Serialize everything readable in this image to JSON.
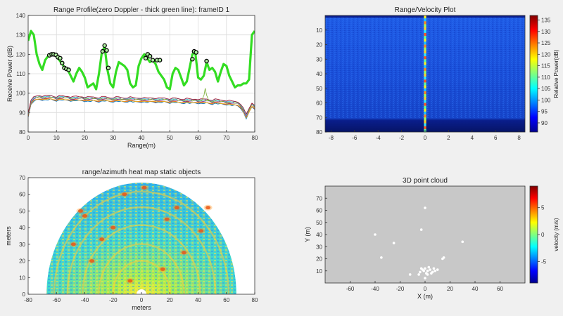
{
  "figure": {
    "background": "#f0f0f0"
  },
  "chart_data": [
    {
      "id": "range-profile",
      "type": "line",
      "title": "Range Profile(zero Doppler - thick green line): frameID 1",
      "xlabel": "Range(m)",
      "ylabel": "Receive Power (dB)",
      "xlim": [
        0,
        80
      ],
      "ylim": [
        80,
        140
      ],
      "xticks": [
        0,
        10,
        20,
        30,
        40,
        50,
        60,
        70,
        80
      ],
      "yticks": [
        80,
        90,
        100,
        110,
        120,
        130,
        140
      ],
      "grid": true,
      "series": [
        {
          "color": "#33dd22",
          "x": [
            0,
            1,
            2,
            3,
            4,
            5,
            6,
            7,
            8,
            9,
            10,
            11,
            12,
            13,
            14,
            15,
            16,
            17,
            18,
            19,
            20,
            21,
            22,
            23,
            24,
            25,
            26,
            27,
            28,
            29,
            30,
            31,
            32,
            33,
            34,
            35,
            36,
            37,
            38,
            39,
            40,
            41,
            42,
            43,
            44,
            45,
            46,
            47,
            48,
            49,
            50,
            51,
            52,
            53,
            54,
            55,
            56,
            57,
            58,
            59,
            60,
            61,
            62,
            63,
            64,
            65,
            66,
            67,
            68,
            69,
            70,
            71,
            72,
            73,
            74,
            75,
            76,
            77,
            78,
            79,
            80
          ],
          "values": [
            127,
            132,
            130,
            120,
            115,
            112,
            117,
            119,
            120,
            120,
            119,
            117,
            115,
            113,
            112,
            109,
            106,
            110,
            113,
            111,
            108,
            103,
            104,
            105,
            102,
            110,
            121,
            124,
            112,
            105,
            103,
            111,
            116,
            115,
            114,
            112,
            105,
            103,
            104,
            114,
            118,
            120,
            118,
            116,
            117,
            115,
            111,
            109,
            107,
            103,
            102,
            110,
            113,
            112,
            108,
            104,
            106,
            113,
            120,
            121,
            108,
            107,
            109,
            116,
            112,
            113,
            111,
            106,
            111,
            115,
            114,
            109,
            106,
            103,
            104,
            104,
            105,
            105,
            107,
            130,
            132
          ]
        }
      ],
      "background_series": {
        "colors": [
          "#0072bd",
          "#d95319",
          "#edb120",
          "#7e2f8e",
          "#77ac30",
          "#4dbeee",
          "#a2142f"
        ],
        "values": [
          89,
          95,
          97,
          97.5,
          97.8,
          97.6,
          97.5,
          97.7,
          97.8,
          97.4,
          97.2,
          97.5,
          97.6,
          97.3,
          97.4,
          97.2,
          97.0,
          97.3,
          97.1,
          97.2,
          97.0,
          96.8,
          96.9,
          97.0,
          96.8,
          96.7,
          96.9,
          97.1,
          96.8,
          96.6,
          96.7,
          96.8,
          96.9,
          96.6,
          96.5,
          96.7,
          96.8,
          96.6,
          96.4,
          96.5,
          96.6,
          96.4,
          96.3,
          96.5,
          96.6,
          96.4,
          96.2,
          96.3,
          96.5,
          96.3,
          96.1,
          96.2,
          96.3,
          96.1,
          95.9,
          96.0,
          96.1,
          95.9,
          95.8,
          96.0,
          95.9,
          95.7,
          95.8,
          95.9,
          95.6,
          95.5,
          95.7,
          95.6,
          95.4,
          95.3,
          95.2,
          95.0,
          94.8,
          94.7,
          94.5,
          93.5,
          91,
          88,
          91,
          94,
          93
        ],
        "spike": {
          "x": 62.5,
          "y": 102.5
        }
      },
      "markers": [
        {
          "x": 7.5,
          "y": 119.5
        },
        {
          "x": 8.3,
          "y": 120
        },
        {
          "x": 9,
          "y": 120
        },
        {
          "x": 9.8,
          "y": 119.7
        },
        {
          "x": 10.5,
          "y": 118.5
        },
        {
          "x": 11.3,
          "y": 118
        },
        {
          "x": 12,
          "y": 115.5
        },
        {
          "x": 12.8,
          "y": 113
        },
        {
          "x": 13.5,
          "y": 112.5
        },
        {
          "x": 14.3,
          "y": 112
        },
        {
          "x": 26.3,
          "y": 121.5
        },
        {
          "x": 27,
          "y": 124.5
        },
        {
          "x": 27.7,
          "y": 122
        },
        {
          "x": 28.3,
          "y": 113
        },
        {
          "x": 41.5,
          "y": 118
        },
        {
          "x": 42.2,
          "y": 120
        },
        {
          "x": 43,
          "y": 119
        },
        {
          "x": 44,
          "y": 117
        },
        {
          "x": 45.5,
          "y": 117
        },
        {
          "x": 46.5,
          "y": 117
        },
        {
          "x": 58,
          "y": 117.5
        },
        {
          "x": 58.6,
          "y": 121.5
        },
        {
          "x": 59.3,
          "y": 121
        },
        {
          "x": 63,
          "y": 116.5
        }
      ]
    },
    {
      "id": "range-velocity",
      "type": "heatmap",
      "title": "Range/Velocity Plot",
      "xlim": [
        -8.5,
        8.5
      ],
      "ylim": [
        80,
        0
      ],
      "xticks": [
        -8,
        -6,
        -4,
        -2,
        0,
        2,
        4,
        6,
        8
      ],
      "yticks": [
        10,
        20,
        30,
        40,
        50,
        60,
        70,
        80
      ],
      "colorbar": {
        "label": "Relative Power(dB)",
        "min": 86,
        "max": 137,
        "ticks": [
          90,
          95,
          100,
          105,
          110,
          115,
          120,
          125,
          130,
          135
        ]
      }
    },
    {
      "id": "range-azimuth",
      "type": "heatmap",
      "title": "range/azimuth heat map static objects",
      "xlabel": "meters",
      "ylabel": "meters",
      "xlim": [
        -80,
        80
      ],
      "ylim": [
        0,
        70
      ],
      "xticks": [
        -80,
        -60,
        -40,
        -20,
        0,
        20,
        40,
        60,
        80
      ],
      "yticks": [
        0,
        10,
        20,
        30,
        40,
        50,
        60,
        70
      ],
      "max_range": 67,
      "hotspots": [
        {
          "x": -43,
          "y": 50
        },
        {
          "x": -40,
          "y": 47
        },
        {
          "x": -28,
          "y": 33
        },
        {
          "x": -35,
          "y": 20
        },
        {
          "x": -20,
          "y": 40
        },
        {
          "x": -12,
          "y": 60
        },
        {
          "x": 2,
          "y": 64
        },
        {
          "x": 18,
          "y": 45
        },
        {
          "x": 25,
          "y": 52
        },
        {
          "x": 15,
          "y": 15
        },
        {
          "x": 47,
          "y": 52
        },
        {
          "x": 42,
          "y": 38
        },
        {
          "x": -48,
          "y": 30
        },
        {
          "x": 30,
          "y": 25
        },
        {
          "x": -8,
          "y": 8
        }
      ]
    },
    {
      "id": "point-cloud",
      "type": "scatter",
      "title": "3D point cloud",
      "xlabel": "X (m)",
      "ylabel": "Y (m)",
      "xlim": [
        -80,
        80
      ],
      "ylim": [
        0,
        80
      ],
      "xticks": [
        -60,
        -40,
        -20,
        0,
        20,
        40,
        60
      ],
      "yticks": [
        10,
        20,
        30,
        40,
        50,
        60,
        70
      ],
      "axes_background": "#c8c8c8",
      "point_color": "#ffffff",
      "points": [
        {
          "x": 0,
          "y": 62
        },
        {
          "x": -3,
          "y": 44
        },
        {
          "x": -40,
          "y": 40
        },
        {
          "x": -25,
          "y": 33
        },
        {
          "x": 30,
          "y": 34
        },
        {
          "x": -35,
          "y": 21
        },
        {
          "x": 15,
          "y": 21
        },
        {
          "x": 14,
          "y": 20
        },
        {
          "x": -12,
          "y": 7
        },
        {
          "x": -4,
          "y": 9
        },
        {
          "x": -2,
          "y": 11
        },
        {
          "x": 0,
          "y": 12
        },
        {
          "x": 2,
          "y": 10
        },
        {
          "x": 4,
          "y": 11
        },
        {
          "x": 6,
          "y": 9
        },
        {
          "x": 1,
          "y": 8
        },
        {
          "x": -1,
          "y": 10
        },
        {
          "x": 3,
          "y": 13
        },
        {
          "x": 5,
          "y": 8
        },
        {
          "x": -3,
          "y": 12
        },
        {
          "x": 7,
          "y": 12
        },
        {
          "x": 2,
          "y": 7
        },
        {
          "x": 8,
          "y": 10
        },
        {
          "x": -5,
          "y": 7
        },
        {
          "x": 0,
          "y": 4
        },
        {
          "x": 10,
          "y": 11
        }
      ],
      "colorbar": {
        "label": "velocity (m/s)",
        "min": -9,
        "max": 9,
        "ticks": [
          5,
          0,
          -5
        ]
      }
    }
  ]
}
